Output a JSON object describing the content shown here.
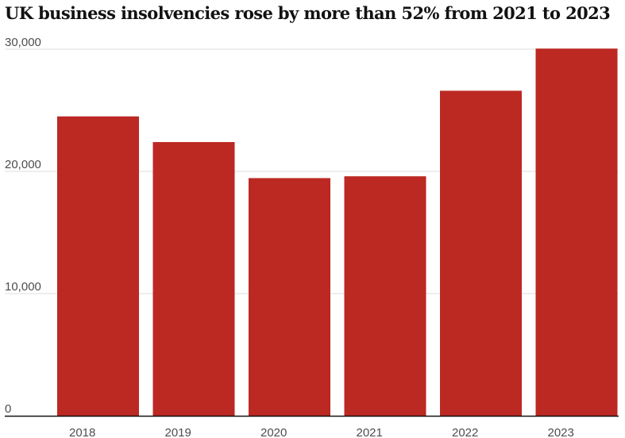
{
  "chart_data": {
    "type": "bar",
    "title": "UK business insolvencies rose by more than 52% from 2021 to 2023",
    "xlabel": "",
    "ylabel": "",
    "categories": [
      "2018",
      "2019",
      "2020",
      "2021",
      "2022",
      "2023"
    ],
    "values": [
      24500,
      22400,
      19450,
      19600,
      26600,
      30050
    ],
    "ylim": [
      0,
      30000
    ],
    "yticks": [
      0,
      10000,
      20000,
      30000
    ],
    "ytick_labels": [
      "0",
      "10,000",
      "20,000",
      "30,000"
    ],
    "grid": "horizontal",
    "bar_color": "#bb2922",
    "gridline_color": "#dcdcdc",
    "axis_color": "#121212"
  }
}
